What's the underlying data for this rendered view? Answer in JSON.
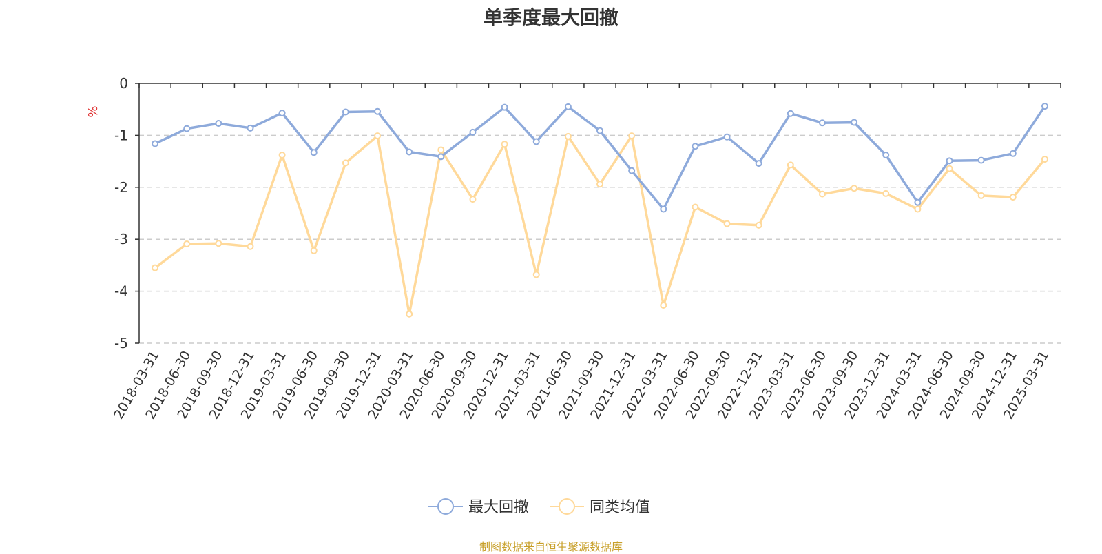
{
  "chart_data": {
    "type": "line",
    "title": "单季度最大回撤",
    "ylabel": "%",
    "ylim": [
      -5,
      0
    ],
    "yticks": [
      0,
      -1,
      -2,
      -3,
      -4,
      -5
    ],
    "grid": true,
    "legend_position": "bottom",
    "categories": [
      "2018-03-31",
      "2018-06-30",
      "2018-09-30",
      "2018-12-31",
      "2019-03-31",
      "2019-06-30",
      "2019-09-30",
      "2019-12-31",
      "2020-03-31",
      "2020-06-30",
      "2020-09-30",
      "2020-12-31",
      "2021-03-31",
      "2021-06-30",
      "2021-09-30",
      "2021-12-31",
      "2022-03-31",
      "2022-06-30",
      "2022-09-30",
      "2022-12-31",
      "2023-03-31",
      "2023-06-30",
      "2023-09-30",
      "2023-12-31",
      "2024-03-31",
      "2024-06-30",
      "2024-09-30",
      "2024-12-31",
      "2025-03-31"
    ],
    "series": [
      {
        "name": "最大回撤",
        "color": "#8eaadb",
        "values": [
          -1.16,
          -0.87,
          -0.77,
          -0.86,
          -0.57,
          -1.33,
          -0.55,
          -0.54,
          -1.32,
          -1.41,
          -0.94,
          -0.46,
          -1.12,
          -0.45,
          -0.91,
          -1.68,
          -2.42,
          -1.21,
          -1.03,
          -1.54,
          -0.58,
          -0.76,
          -0.75,
          -1.38,
          -2.29,
          -1.49,
          -1.48,
          -1.35,
          -0.44
        ]
      },
      {
        "name": "同类均值",
        "color": "#ffd99a",
        "values": [
          -3.55,
          -3.09,
          -3.08,
          -3.14,
          -1.38,
          -3.22,
          -1.53,
          -1.01,
          -4.44,
          -1.28,
          -2.23,
          -1.17,
          -3.68,
          -1.02,
          -1.94,
          -1.01,
          -4.27,
          -2.38,
          -2.7,
          -2.73,
          -1.57,
          -2.13,
          -2.02,
          -2.12,
          -2.42,
          -1.64,
          -2.16,
          -2.19,
          -1.46
        ]
      }
    ],
    "source_note": "制图数据来自恒生聚源数据库"
  }
}
